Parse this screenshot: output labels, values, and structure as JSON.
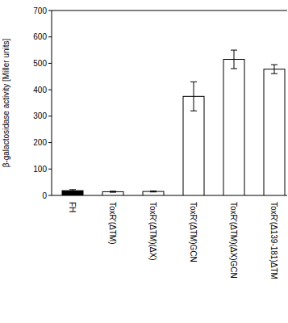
{
  "chart_data": {
    "type": "bar",
    "y_label": "β-galactosidase activity [Miller units]",
    "categories": [
      "FH",
      "ToxR'(ΔTM)",
      "ToxR'(ΔTM)(ΔX)",
      "ToxR'(ΔTM)GCN",
      "ToxR'(ΔTM)(ΔX)GCN",
      "ToxR'(Δ139-181)ΔTM"
    ],
    "values": [
      18,
      14,
      15,
      375,
      515,
      478
    ],
    "errors": [
      4,
      2,
      2,
      55,
      35,
      17
    ],
    "colors": [
      "#000000",
      "#ffffff",
      "#ffffff",
      "#ffffff",
      "#ffffff",
      "#ffffff"
    ],
    "ylim": [
      0,
      700
    ],
    "yticks": [
      0,
      100,
      200,
      300,
      400,
      500,
      600,
      700
    ],
    "grid": false
  }
}
